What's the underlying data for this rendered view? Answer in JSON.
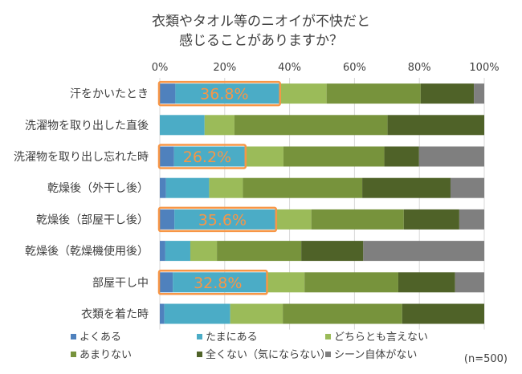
{
  "chart_data": {
    "type": "bar",
    "orientation": "horizontal",
    "stacked": "percent",
    "title": "衣類やタオル等のニオイが不快だと\n感じることがありますか？",
    "title_lines": [
      "衣類やタオル等のニオイが不快だと",
      "感じることがありますか？"
    ],
    "categories": [
      "汗をかいたとき",
      "洗濯物を取り出した直後",
      "洗濯物を取り出し忘れた時",
      "乾燥後（外干し後）",
      "乾燥後（部屋干し後）",
      "乾燥後（乾燥機使用後）",
      "部屋干し中",
      "衣類を着た時"
    ],
    "xlim": [
      0,
      100
    ],
    "x_ticks": [
      "0%",
      "20%",
      "40%",
      "60%",
      "80%",
      "100%"
    ],
    "grid": true,
    "legend_position": "bottom",
    "series": [
      {
        "name": "よくある",
        "color": "#4F81BD",
        "values": [
          4.8,
          0,
          4.4,
          1.9,
          4.5,
          1.7,
          4.0,
          1.4
        ]
      },
      {
        "name": "たまにある",
        "color": "#4BACC6",
        "values": [
          32.0,
          13.8,
          21.8,
          13.3,
          31.1,
          7.7,
          28.8,
          20.3
        ]
      },
      {
        "name": "どちらとも言えない",
        "color": "#9BBB59",
        "values": [
          14.6,
          9.2,
          11.9,
          10.4,
          11.1,
          8.2,
          11.8,
          16.2
        ]
      },
      {
        "name": "あまりない",
        "color": "#77933C",
        "values": [
          29.0,
          47.2,
          31.1,
          36.8,
          28.5,
          26.0,
          28.9,
          36.8
        ]
      },
      {
        "name": "全くない（気にならない）",
        "color": "#4F6228",
        "values": [
          16.4,
          29.8,
          10.7,
          27.2,
          17.1,
          19.1,
          17.5,
          25.3
        ]
      },
      {
        "name": "シーン自体がない",
        "color": "#7F7F7F",
        "values": [
          3.2,
          0,
          20.1,
          10.4,
          7.7,
          37.3,
          9.0,
          0
        ]
      }
    ],
    "annotations": [
      {
        "category_index": 0,
        "text": "36.8%",
        "value": 36.8
      },
      {
        "category_index": 2,
        "text": "26.2%",
        "value": 26.2
      },
      {
        "category_index": 4,
        "text": "35.6%",
        "value": 35.6
      },
      {
        "category_index": 6,
        "text": "32.8%",
        "value": 32.8
      }
    ],
    "highlight_color": "#F79646",
    "note": "(n=500)"
  }
}
